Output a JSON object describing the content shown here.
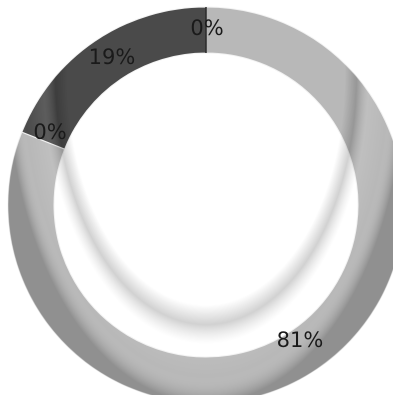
{
  "chart_data": {
    "type": "pie",
    "variant": "doughnut",
    "title": "",
    "legend": "none",
    "slices": [
      {
        "value": 81,
        "label": "81%",
        "color": "#b8b8b8"
      },
      {
        "value": 0,
        "label": "0%",
        "color": "#dcdcdc"
      },
      {
        "value": 19,
        "label": "19%",
        "color": "#4a4a4a"
      },
      {
        "value": 0,
        "label": "0%",
        "color": "#2a2a2a"
      }
    ]
  }
}
